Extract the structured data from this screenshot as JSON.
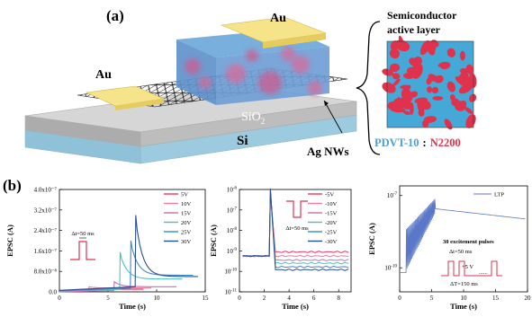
{
  "panel_a": {
    "label": "(a)",
    "au_left": "Au",
    "au_right": "Au",
    "sio2_prefix": "SiO",
    "sio2_sub": "2",
    "si": "Si",
    "ag_nws": "Ag NWs",
    "inset_title_line1": "Semiconductor",
    "inset_title_line2": "active layer",
    "material1": "PDVT-10",
    "separator": ":",
    "material2": "N2200",
    "colors": {
      "pdvt": "#4f9dd6",
      "n2200": "#e0324c",
      "au": "#f4e07a",
      "sio2": "#bfbfbf",
      "si": "#a6d2e6"
    }
  },
  "panel_b_label": "(b)",
  "chart_data": [
    {
      "type": "line",
      "ylabel": "EPSC (A)",
      "xlabel": "Time (s)",
      "xticks": [
        "0",
        "5",
        "10",
        "15"
      ],
      "yticks": [
        "0.0",
        "8.0x10⁻⁸",
        "1.6x10⁻⁷",
        "2.4x10⁻⁷",
        "3.2x10⁻⁷",
        "4.0x10⁻⁷"
      ],
      "xlim": [
        0,
        15
      ],
      "ylim": [
        0,
        4e-07
      ],
      "annotation": "Δt=50 ms",
      "series": [
        {
          "name": "5V",
          "color": "#e8385a",
          "pulse_t": 2.2,
          "peak": 1e-08,
          "base": 2e-09,
          "decay": 1e-08
        },
        {
          "name": "10V",
          "color": "#f07aa0",
          "pulse_t": 3.0,
          "peak": 2e-08,
          "base": 3e-09,
          "decay": 1.5e-08
        },
        {
          "name": "15V",
          "color": "#c070c0",
          "pulse_t": 5.6,
          "peak": 4e-08,
          "base": 5e-09,
          "decay": 2e-08
        },
        {
          "name": "20V",
          "color": "#4fc0c0",
          "pulse_t": 6.2,
          "peak": 1.55e-07,
          "base": 1e-08,
          "decay": 5e-08
        },
        {
          "name": "25V",
          "color": "#3a8ac8",
          "pulse_t": 7.3,
          "peak": 2e-07,
          "base": 1.5e-08,
          "decay": 6.5e-08
        },
        {
          "name": "30V",
          "color": "#2a4e8a",
          "pulse_t": 7.8,
          "peak": 3e-07,
          "base": 2e-08,
          "decay": 6e-08
        }
      ]
    },
    {
      "type": "line",
      "ylabel": "EPSC (A)",
      "xlabel": "Time (s)",
      "xticks": [
        "0",
        "2",
        "4",
        "6",
        "8"
      ],
      "xlim": [
        0,
        9
      ],
      "yscale": "log",
      "ylim_exp": [
        -11,
        -6
      ],
      "annotation": "Δt=50 ms",
      "series": [
        {
          "name": "-5V",
          "color": "#e8385a",
          "level": -9.05
        },
        {
          "name": "-10V",
          "color": "#f07aa0",
          "level": -9.25
        },
        {
          "name": "-15V",
          "color": "#c070c0",
          "level": -9.45
        },
        {
          "name": "-20V",
          "color": "#4fc0c0",
          "level": -9.6
        },
        {
          "name": "-25V",
          "color": "#3a8ac8",
          "level": -9.78
        },
        {
          "name": "-30V",
          "color": "#2a4e8a",
          "level": -9.92
        }
      ],
      "pulse_t": 2.5,
      "pre_level": -9.25,
      "peak_level": -6.2
    },
    {
      "type": "line",
      "ylabel": "EPSC (A)",
      "xlabel": "Time (s)",
      "xticks": [
        "0",
        "5",
        "10",
        "15",
        "20"
      ],
      "xlim": [
        0,
        20
      ],
      "yscale": "log",
      "ylim_exp": [
        -11,
        -6.6
      ],
      "series": [
        {
          "name": "LTP",
          "color": "#5b78c8"
        }
      ],
      "pulse_count": 30,
      "train_start": 1.0,
      "train_end": 5.6,
      "annotations": {
        "title": "30 excitement pulses",
        "dt1": "Δt=50 ms",
        "amp": "+5 V",
        "dt2": "ΔT=150 ms",
        "dots": "......"
      }
    }
  ]
}
